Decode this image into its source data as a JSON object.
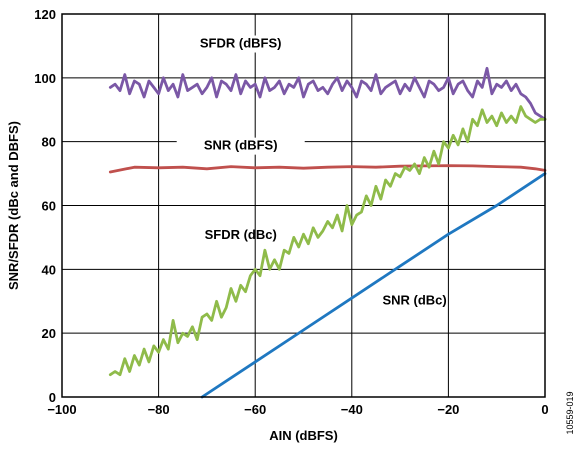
{
  "chart_data": {
    "type": "line",
    "xlabel": "AIN (dBFS)",
    "ylabel": "SNR/SFDR (dBc and DBFS)",
    "xlim": [
      -100,
      0
    ],
    "ylim": [
      0,
      120
    ],
    "x_ticks": [
      "−100",
      "−80",
      "−60",
      "−40",
      "−20",
      "0"
    ],
    "y_ticks": [
      "0",
      "20",
      "40",
      "60",
      "80",
      "100",
      "120"
    ],
    "grid": true,
    "figure_id": "10559-019",
    "colors": {
      "sfdr_dbfs": "#7b58a6",
      "snr_dbfs": "#c0504d",
      "sfdr_dbc": "#8fbb4a",
      "snr_dbc": "#1f78c1"
    },
    "annotations": [
      {
        "text": "SFDR (dBFS)",
        "series": "sfdr_dbfs"
      },
      {
        "text": "SNR (dBFS)",
        "series": "snr_dbfs"
      },
      {
        "text": "SFDR (dBc)",
        "series": "sfdr_dbc"
      },
      {
        "text": "SNR (dBc)",
        "series": "snr_dbc"
      }
    ],
    "series": [
      {
        "key": "sfdr_dbfs",
        "x": [
          -90,
          -89,
          -88,
          -87,
          -86,
          -85,
          -84,
          -83,
          -82,
          -81,
          -80,
          -79,
          -78,
          -77,
          -76,
          -75,
          -74,
          -73,
          -72,
          -71,
          -70,
          -69,
          -68,
          -67,
          -66,
          -65,
          -64,
          -63,
          -62,
          -61,
          -60,
          -59,
          -58,
          -57,
          -56,
          -55,
          -54,
          -53,
          -52,
          -51,
          -50,
          -49,
          -48,
          -47,
          -46,
          -45,
          -44,
          -43,
          -42,
          -41,
          -40,
          -39,
          -38,
          -37,
          -36,
          -35,
          -34,
          -33,
          -32,
          -31,
          -30,
          -29,
          -28,
          -27,
          -26,
          -25,
          -24,
          -23,
          -22,
          -21,
          -20,
          -19,
          -18,
          -17,
          -16,
          -15,
          -14,
          -13,
          -12,
          -11,
          -10,
          -9,
          -8,
          -7,
          -6,
          -5,
          -4,
          -3,
          -2,
          -1,
          0
        ],
        "y": [
          97,
          98,
          96,
          101,
          95,
          99,
          98,
          94,
          99,
          97,
          95,
          100,
          96,
          98,
          94,
          101,
          96,
          97,
          98,
          95,
          97,
          100,
          94,
          99,
          98,
          96,
          101,
          95,
          99,
          97,
          98,
          94,
          100,
          96,
          97,
          99,
          95,
          98,
          97,
          100,
          94,
          98,
          99,
          96,
          97,
          95,
          98,
          100,
          96,
          99,
          97,
          94,
          99,
          98,
          96,
          101,
          95,
          97,
          98,
          99,
          95,
          98,
          96,
          100,
          97,
          94,
          99,
          98,
          96,
          97,
          100,
          95,
          98,
          99,
          96,
          94,
          99,
          97,
          103,
          95,
          98,
          97,
          99,
          96,
          98,
          95,
          94,
          92,
          89,
          88,
          87
        ]
      },
      {
        "key": "snr_dbfs",
        "x": [
          -90,
          -85,
          -80,
          -75,
          -70,
          -65,
          -60,
          -55,
          -50,
          -45,
          -40,
          -35,
          -30,
          -25,
          -20,
          -15,
          -10,
          -5,
          -2,
          0
        ],
        "y": [
          70.5,
          72,
          71.8,
          72,
          71.5,
          72.2,
          71.8,
          72,
          71.7,
          72,
          72.2,
          72,
          72.3,
          72.4,
          72.5,
          72.4,
          72.2,
          72,
          71.5,
          71
        ]
      },
      {
        "key": "sfdr_dbc",
        "x": [
          -90,
          -89,
          -88,
          -87,
          -86,
          -85,
          -84,
          -83,
          -82,
          -81,
          -80,
          -79,
          -78,
          -77,
          -76,
          -75,
          -74,
          -73,
          -72,
          -71,
          -70,
          -69,
          -68,
          -67,
          -66,
          -65,
          -64,
          -63,
          -62,
          -61,
          -60,
          -59,
          -58,
          -57,
          -56,
          -55,
          -54,
          -53,
          -52,
          -51,
          -50,
          -49,
          -48,
          -47,
          -46,
          -45,
          -44,
          -43,
          -42,
          -41,
          -40,
          -39,
          -38,
          -37,
          -36,
          -35,
          -34,
          -33,
          -32,
          -31,
          -30,
          -29,
          -28,
          -27,
          -26,
          -25,
          -24,
          -23,
          -22,
          -21,
          -20,
          -19,
          -18,
          -17,
          -16,
          -15,
          -14,
          -13,
          -12,
          -11,
          -10,
          -9,
          -8,
          -7,
          -6,
          -5,
          -4,
          -3,
          -2,
          -1,
          0
        ],
        "y": [
          7,
          8,
          7,
          12,
          8,
          13,
          10,
          15,
          11,
          16,
          14,
          18,
          15,
          24,
          17,
          20,
          19,
          22,
          18,
          25,
          26,
          24,
          30,
          25,
          28,
          34,
          30,
          35,
          33,
          38,
          40,
          38,
          46,
          40,
          43,
          40,
          46,
          45,
          50,
          47,
          51,
          48,
          53,
          50,
          52,
          55,
          53,
          57,
          52,
          60,
          54,
          57,
          58,
          63,
          60,
          66,
          62,
          68,
          66,
          70,
          69,
          72,
          71,
          73,
          70,
          75,
          72,
          77,
          73,
          80,
          78,
          82,
          79,
          84,
          80,
          87,
          85,
          90,
          86,
          88,
          85,
          89,
          86,
          88,
          86,
          91,
          88,
          87,
          86,
          87,
          87
        ]
      },
      {
        "key": "snr_dbc",
        "x": [
          -71,
          -60,
          -50,
          -40,
          -30,
          -20,
          -10,
          0
        ],
        "y": [
          0,
          11,
          21,
          31,
          41,
          51,
          60,
          70
        ]
      }
    ]
  }
}
